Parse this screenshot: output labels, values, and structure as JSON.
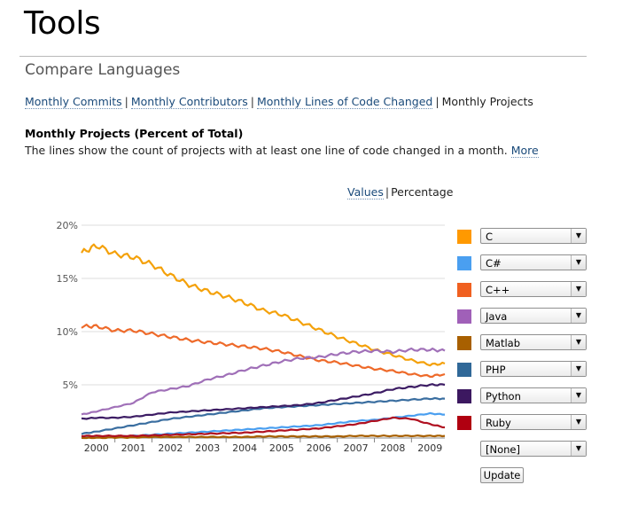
{
  "page": {
    "title": "Tools",
    "section_title": "Compare Languages"
  },
  "subnav": {
    "items": [
      {
        "label": "Monthly Commits",
        "active": false
      },
      {
        "label": "Monthly Contributors",
        "active": false
      },
      {
        "label": "Monthly Lines of Code Changed",
        "active": false
      },
      {
        "label": "Monthly Projects",
        "active": true
      }
    ],
    "separator": "|"
  },
  "chart_header": {
    "title": "Monthly Projects (Percent of Total)",
    "description": "The lines show the count of projects with at least one line of code changed in a month.",
    "more_link": "More"
  },
  "mode_toggle": {
    "values_label": "Values",
    "separator": "|",
    "percentage_label": "Percentage",
    "active": "Percentage"
  },
  "legend": [
    {
      "label": "C",
      "color": "#ff9900"
    },
    {
      "label": "C#",
      "color": "#4a9ff0"
    },
    {
      "label": "C++",
      "color": "#f06020"
    },
    {
      "label": "Java",
      "color": "#a060b8"
    },
    {
      "label": "Matlab",
      "color": "#a86000"
    },
    {
      "label": "PHP",
      "color": "#306898"
    },
    {
      "label": "Python",
      "color": "#3c1860"
    },
    {
      "label": "Ruby",
      "color": "#b00010"
    },
    {
      "label": "[None]",
      "color": null
    }
  ],
  "update_button": "Update",
  "select_arrow": "▼",
  "chart_data": {
    "type": "line",
    "title": "Monthly Projects (Percent of Total)",
    "xlabel": "",
    "ylabel": "",
    "x_ticks": [
      "2000",
      "2001",
      "2002",
      "2003",
      "2004",
      "2005",
      "2006",
      "2007",
      "2008",
      "2009"
    ],
    "y_ticks": [
      "20%",
      "15%",
      "10%",
      "5%"
    ],
    "y_tick_values": [
      20,
      15,
      10,
      5
    ],
    "xlim": [
      1999.6,
      2009.4
    ],
    "ylim": [
      0,
      20
    ],
    "grid": "horizontal",
    "x": [
      1999.6,
      2000.0,
      2000.5,
      2001.0,
      2001.5,
      2002.0,
      2002.5,
      2003.0,
      2003.5,
      2004.0,
      2004.5,
      2005.0,
      2005.5,
      2006.0,
      2006.5,
      2007.0,
      2007.5,
      2008.0,
      2008.5,
      2009.0,
      2009.4
    ],
    "series": [
      {
        "name": "C",
        "color": "#f4a10a",
        "values": [
          17.4,
          18.1,
          17.3,
          17.0,
          16.3,
          15.3,
          14.4,
          13.8,
          13.3,
          12.7,
          12.0,
          11.6,
          10.9,
          10.2,
          9.5,
          8.9,
          8.3,
          7.8,
          7.3,
          6.9,
          7.0
        ]
      },
      {
        "name": "C#",
        "color": "#4a9ff0",
        "values": [
          0.1,
          0.1,
          0.15,
          0.2,
          0.3,
          0.4,
          0.5,
          0.6,
          0.7,
          0.8,
          0.9,
          1.0,
          1.1,
          1.2,
          1.4,
          1.6,
          1.7,
          1.9,
          2.1,
          2.3,
          2.2
        ]
      },
      {
        "name": "C++",
        "color": "#ee6a2a",
        "values": [
          10.5,
          10.5,
          10.1,
          10.1,
          9.8,
          9.5,
          9.2,
          9.0,
          8.8,
          8.6,
          8.4,
          8.1,
          7.7,
          7.3,
          7.1,
          6.8,
          6.5,
          6.3,
          6.0,
          5.8,
          6.0
        ]
      },
      {
        "name": "Java",
        "color": "#a070b8",
        "values": [
          2.2,
          2.5,
          2.9,
          3.3,
          4.3,
          4.6,
          4.9,
          5.5,
          5.9,
          6.4,
          6.8,
          7.2,
          7.5,
          7.6,
          7.9,
          8.1,
          8.2,
          8.1,
          8.3,
          8.3,
          8.2
        ]
      },
      {
        "name": "Matlab",
        "color": "#a86000",
        "values": [
          0.0,
          0.0,
          0.05,
          0.05,
          0.1,
          0.1,
          0.1,
          0.1,
          0.1,
          0.1,
          0.15,
          0.15,
          0.15,
          0.15,
          0.15,
          0.2,
          0.2,
          0.2,
          0.2,
          0.2,
          0.2
        ]
      },
      {
        "name": "PHP",
        "color": "#3a6ea0",
        "values": [
          0.4,
          0.6,
          0.9,
          1.2,
          1.5,
          1.8,
          2.0,
          2.2,
          2.4,
          2.6,
          2.8,
          2.9,
          3.0,
          3.1,
          3.2,
          3.3,
          3.4,
          3.5,
          3.6,
          3.7,
          3.7
        ]
      },
      {
        "name": "Python",
        "color": "#3c1c64",
        "values": [
          1.8,
          1.9,
          1.9,
          2.0,
          2.2,
          2.4,
          2.5,
          2.6,
          2.7,
          2.8,
          2.9,
          3.0,
          3.1,
          3.3,
          3.6,
          3.9,
          4.2,
          4.6,
          4.8,
          5.0,
          5.0
        ]
      },
      {
        "name": "Ruby",
        "color": "#b01020",
        "values": [
          0.2,
          0.2,
          0.2,
          0.2,
          0.25,
          0.3,
          0.35,
          0.4,
          0.45,
          0.5,
          0.6,
          0.7,
          0.8,
          0.9,
          1.1,
          1.3,
          1.6,
          1.9,
          1.8,
          1.3,
          1.0
        ]
      }
    ]
  }
}
